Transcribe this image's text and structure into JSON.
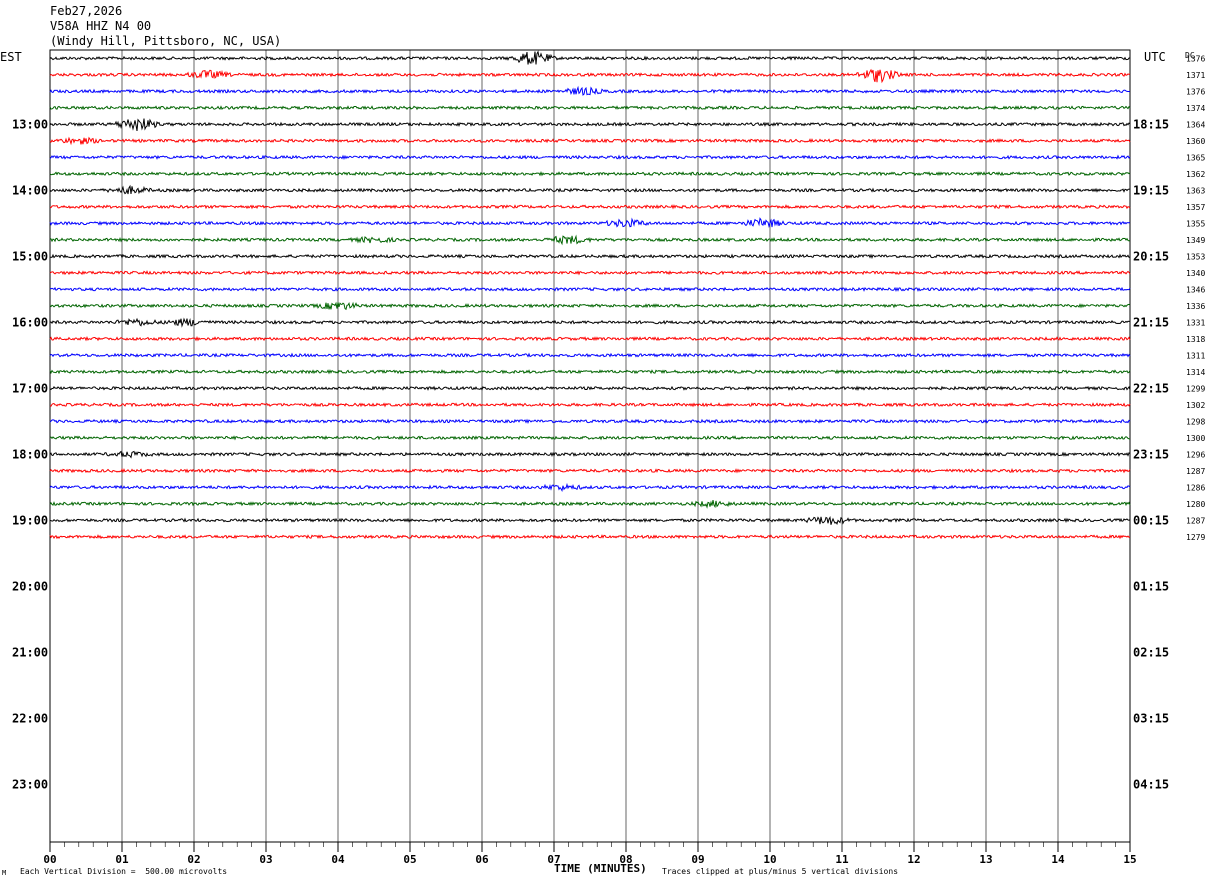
{
  "header": {
    "date": "Feb27,2026",
    "station": "V58A HHZ N4 00",
    "location": "(Windy Hill, Pittsboro, NC, USA)"
  },
  "chart_data": {
    "type": "line",
    "title": "",
    "left_axis_label": "EST",
    "right_axis_label": "UTC",
    "dc_label": "DC",
    "xlabel": "TIME (MINUTES)",
    "xlim": [
      0,
      15
    ],
    "x_ticks": [
      "00",
      "01",
      "02",
      "03",
      "04",
      "05",
      "06",
      "07",
      "08",
      "09",
      "10",
      "11",
      "12",
      "13",
      "14",
      "15"
    ],
    "rows_per_hour": 4,
    "total_rows": 48,
    "est_hour_labels": [
      {
        "row": 4,
        "text": "13:00"
      },
      {
        "row": 8,
        "text": "14:00"
      },
      {
        "row": 12,
        "text": "15:00"
      },
      {
        "row": 16,
        "text": "16:00"
      },
      {
        "row": 20,
        "text": "17:00"
      },
      {
        "row": 24,
        "text": "18:00"
      },
      {
        "row": 28,
        "text": "19:00"
      },
      {
        "row": 32,
        "text": "20:00"
      },
      {
        "row": 36,
        "text": "21:00"
      },
      {
        "row": 40,
        "text": "22:00"
      },
      {
        "row": 44,
        "text": "23:00"
      }
    ],
    "utc_hour_labels": [
      {
        "row": 4,
        "text": "18:15"
      },
      {
        "row": 8,
        "text": "19:15"
      },
      {
        "row": 12,
        "text": "20:15"
      },
      {
        "row": 16,
        "text": "21:15"
      },
      {
        "row": 20,
        "text": "22:15"
      },
      {
        "row": 24,
        "text": "23:15"
      },
      {
        "row": 28,
        "text": "00:15"
      },
      {
        "row": 32,
        "text": "01:15"
      },
      {
        "row": 36,
        "text": "02:15"
      },
      {
        "row": 40,
        "text": "03:15"
      },
      {
        "row": 44,
        "text": "04:15"
      }
    ],
    "trace_colors": [
      "#000000",
      "#ff0000",
      "#0000ff",
      "#006400"
    ],
    "dc_offsets": [
      1376,
      1371,
      1376,
      1374,
      1364,
      1360,
      1365,
      1362,
      1363,
      1357,
      1355,
      1349,
      1353,
      1340,
      1346,
      1336,
      1331,
      1318,
      1311,
      1314,
      1299,
      1302,
      1298,
      1300,
      1296,
      1287,
      1286,
      1280,
      1287,
      1279
    ],
    "events": [
      {
        "trace": 0,
        "minute": 6.7,
        "amplitude": 3.0
      },
      {
        "trace": 1,
        "minute": 2.2,
        "amplitude": 1.6
      },
      {
        "trace": 1,
        "minute": 11.5,
        "amplitude": 3.0
      },
      {
        "trace": 2,
        "minute": 7.4,
        "amplitude": 1.4
      },
      {
        "trace": 4,
        "minute": 1.2,
        "amplitude": 3.0
      },
      {
        "trace": 5,
        "minute": 0.4,
        "amplitude": 1.2
      },
      {
        "trace": 8,
        "minute": 1.1,
        "amplitude": 1.4
      },
      {
        "trace": 10,
        "minute": 8.0,
        "amplitude": 1.6
      },
      {
        "trace": 10,
        "minute": 9.9,
        "amplitude": 1.8
      },
      {
        "trace": 11,
        "minute": 7.2,
        "amplitude": 1.6
      },
      {
        "trace": 11,
        "minute": 4.5,
        "amplitude": 1.0
      },
      {
        "trace": 15,
        "minute": 4.0,
        "amplitude": 1.6
      },
      {
        "trace": 16,
        "minute": 1.2,
        "amplitude": 1.3
      },
      {
        "trace": 16,
        "minute": 1.9,
        "amplitude": 1.4
      },
      {
        "trace": 24,
        "minute": 1.1,
        "amplitude": 1.0
      },
      {
        "trace": 26,
        "minute": 7.1,
        "amplitude": 1.0
      },
      {
        "trace": 27,
        "minute": 9.2,
        "amplitude": 1.1
      },
      {
        "trace": 28,
        "minute": 10.8,
        "amplitude": 1.8
      }
    ]
  },
  "footer": {
    "mark": "M",
    "scale_note": "Each Vertical Division =  500.00 microvolts",
    "clip_note": "Traces clipped at plus/minus 5 vertical divisions"
  }
}
